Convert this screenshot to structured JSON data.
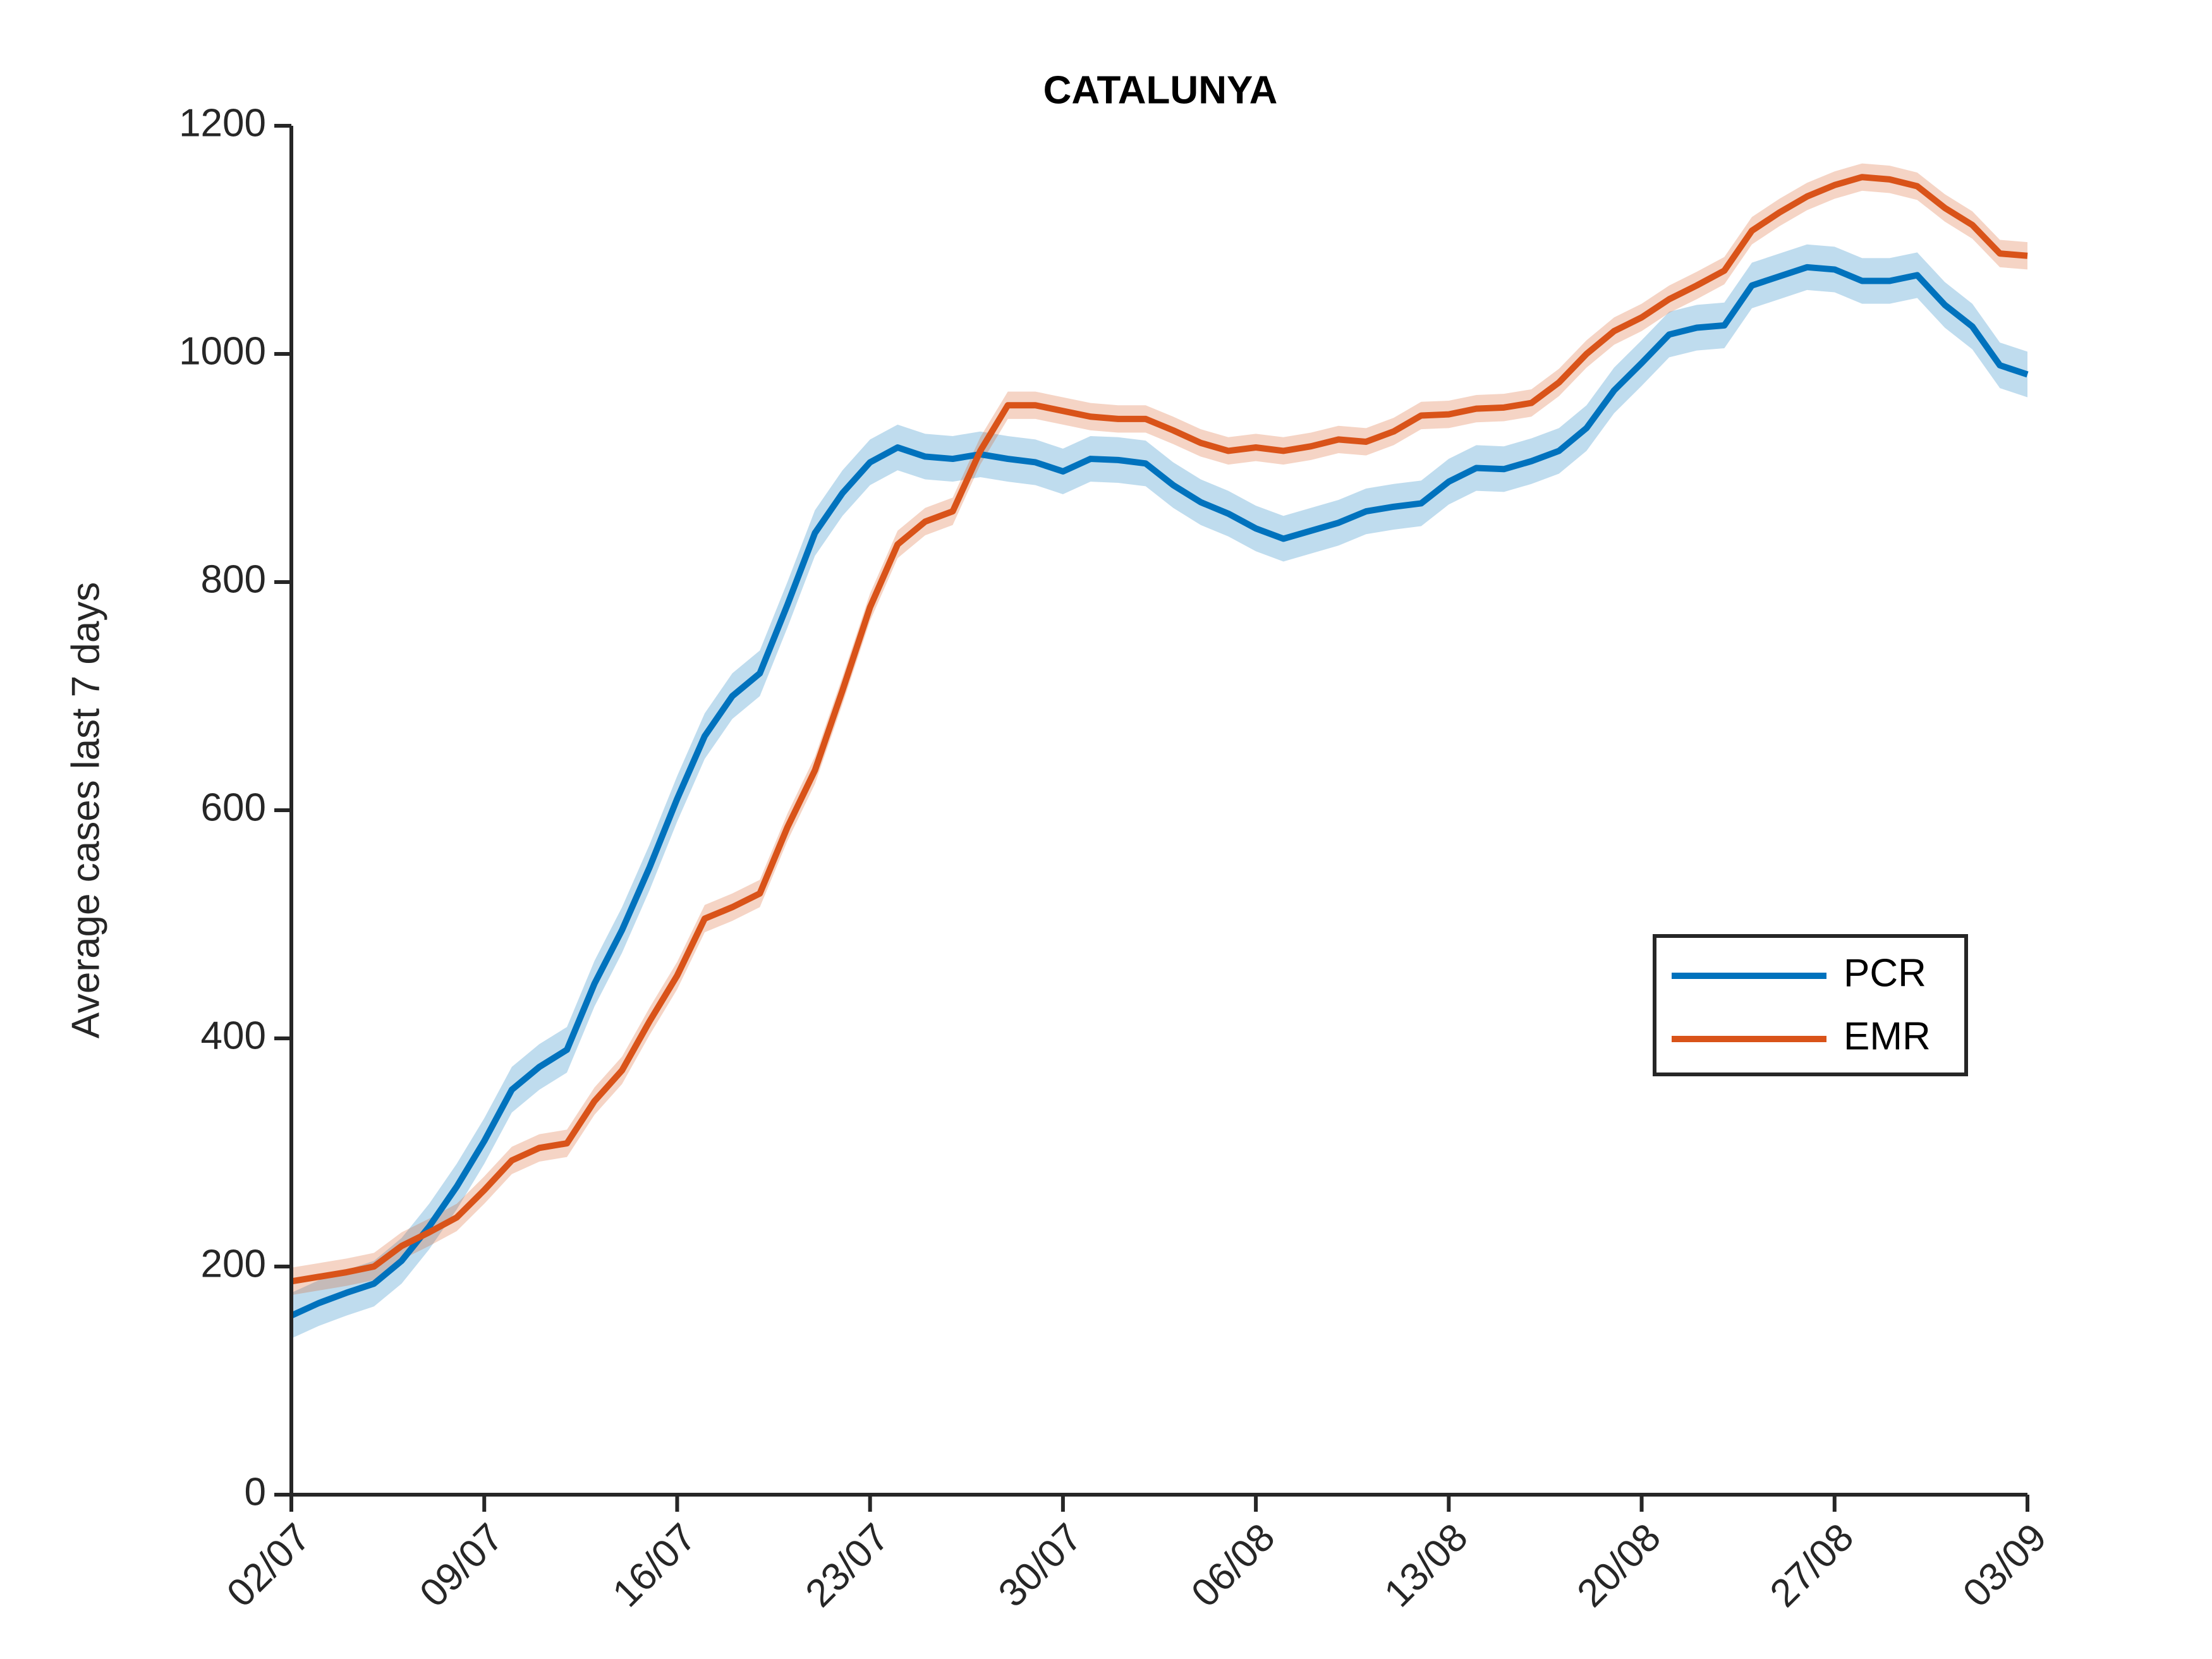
{
  "chart_data": {
    "type": "line",
    "title": "CATALUNYA",
    "y_label": "Average cases last 7 days",
    "categories": [
      "02/07",
      null,
      null,
      null,
      null,
      null,
      null,
      "09/07",
      null,
      null,
      null,
      null,
      null,
      null,
      "16/07",
      null,
      null,
      null,
      null,
      null,
      null,
      "23/07",
      null,
      null,
      null,
      null,
      null,
      null,
      "30/07",
      null,
      null,
      null,
      null,
      null,
      null,
      "06/08",
      null,
      null,
      null,
      null,
      null,
      null,
      "13/08",
      null,
      null,
      null,
      null,
      null,
      null,
      "20/08",
      null,
      null,
      null,
      null,
      null,
      null,
      "27/08",
      null,
      null,
      null,
      null,
      null,
      null,
      "03/09"
    ],
    "series": [
      {
        "name": "PCR",
        "color": "#0072BD",
        "ci": 20,
        "values": [
          157,
          168,
          177,
          185,
          205,
          235,
          270,
          310,
          355,
          375,
          390,
          448,
          495,
          550,
          610,
          665,
          700,
          720,
          780,
          843,
          878,
          905,
          918,
          910,
          908,
          912,
          908,
          905,
          897,
          908,
          907,
          904,
          885,
          870,
          860,
          847,
          838,
          845,
          852,
          862,
          866,
          869,
          888,
          900,
          899,
          906,
          915,
          935,
          968,
          992,
          1017,
          1023,
          1025,
          1060,
          1068,
          1076,
          1074,
          1064,
          1064,
          1069,
          1043,
          1024,
          990,
          982
        ]
      },
      {
        "name": "EMR",
        "color": "#D95319",
        "ci": 12,
        "values": [
          187,
          191,
          195,
          200,
          218,
          230,
          243,
          267,
          293,
          304,
          308,
          345,
          372,
          415,
          455,
          505,
          515,
          527,
          585,
          635,
          705,
          778,
          833,
          853,
          862,
          915,
          955,
          955,
          950,
          945,
          943,
          943,
          933,
          922,
          915,
          918,
          915,
          919,
          925,
          923,
          932,
          946,
          947,
          952,
          953,
          957,
          975,
          1000,
          1020,
          1032,
          1048,
          1060,
          1073,
          1108,
          1124,
          1138,
          1148,
          1155,
          1153,
          1147,
          1128,
          1113,
          1088,
          1086
        ]
      }
    ],
    "ylim": [
      0,
      1200
    ],
    "yticks": [
      0,
      200,
      400,
      600,
      800,
      1000,
      1200
    ],
    "grid": false,
    "legend": "right"
  }
}
